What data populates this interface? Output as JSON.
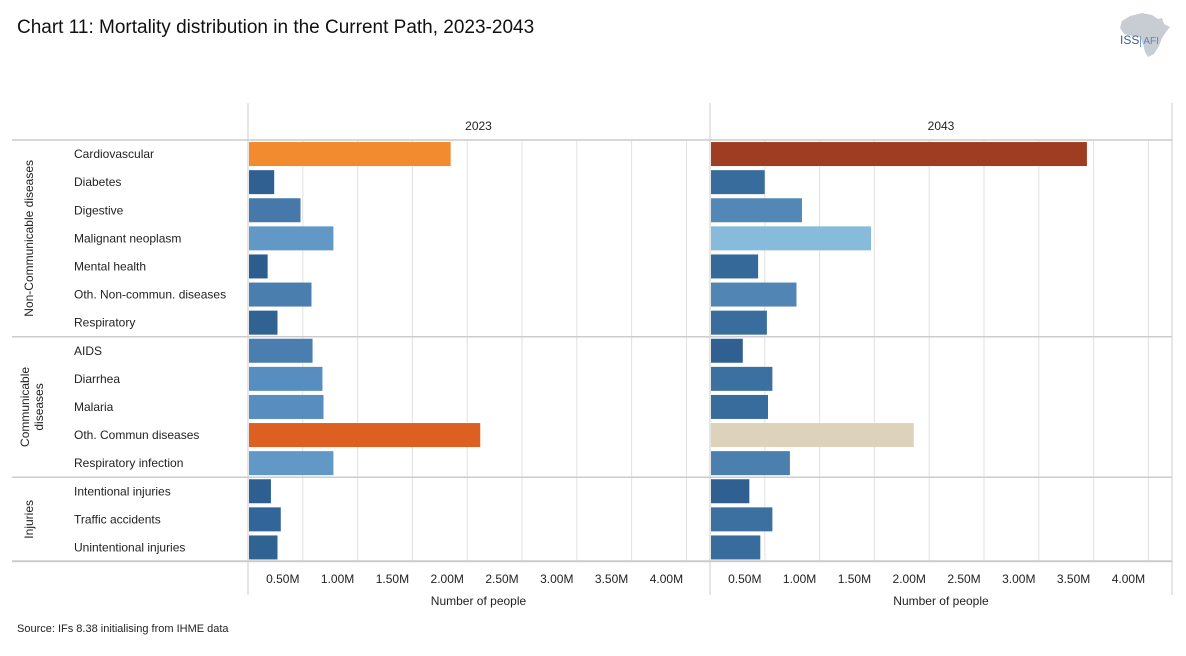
{
  "title": "Chart 11: Mortality distribution in the Current Path, 2023-2043",
  "logo": {
    "icon": "africa-map-icon",
    "text_main": "ISS",
    "text_sub": "AFI"
  },
  "source": "Source: IFs 8.38 initialising from IHME data",
  "colors": {
    "grid": "#e2e2e2",
    "border": "#cccccc",
    "text": "#222222"
  },
  "chart_data": {
    "type": "bar",
    "orientation": "horizontal",
    "title": "Chart 11: Mortality distribution in the Current Path, 2023-2043",
    "xlabel": "Number of people",
    "xlim": [
      0,
      4200000
    ],
    "x_ticks": [
      500000,
      1000000,
      1500000,
      2000000,
      2500000,
      3000000,
      3500000,
      4000000
    ],
    "x_tick_labels": [
      "0.50M",
      "1.00M",
      "1.50M",
      "2.00M",
      "2.50M",
      "3.00M",
      "3.50M",
      "4.00M"
    ],
    "grid": true,
    "groups": [
      {
        "name": "Non-Communicable diseases",
        "label_lines": [
          "Non-Communicable diseases"
        ],
        "categories": [
          "Cardiovascular",
          "Diabetes",
          "Digestive",
          "Malignant neoplasm",
          "Mental health",
          "Oth. Non-commun. diseases",
          "Respiratory"
        ]
      },
      {
        "name": "Communicable diseases",
        "label_lines": [
          "Communicable",
          "diseases"
        ],
        "categories": [
          "AIDS",
          "Diarrhea",
          "Malaria",
          "Oth. Commun diseases",
          "Respiratory infection"
        ]
      },
      {
        "name": "Injuries",
        "label_lines": [
          "Injuries"
        ],
        "categories": [
          "Intentional injuries",
          "Traffic accidents",
          "Unintentional injuries"
        ]
      }
    ],
    "categories": [
      "Cardiovascular",
      "Diabetes",
      "Digestive",
      "Malignant neoplasm",
      "Mental health",
      "Oth. Non-commun. diseases",
      "Respiratory",
      "AIDS",
      "Diarrhea",
      "Malaria",
      "Oth. Commun diseases",
      "Respiratory infection",
      "Intentional injuries",
      "Traffic accidents",
      "Unintentional injuries"
    ],
    "series": [
      {
        "name": "2023",
        "values": [
          1840000,
          230000,
          470000,
          770000,
          170000,
          570000,
          260000,
          580000,
          670000,
          680000,
          2110000,
          770000,
          200000,
          290000,
          260000
        ],
        "colors": [
          "#f28a30",
          "#2f6091",
          "#4679a9",
          "#6198c6",
          "#2d5d8e",
          "#4a7eaf",
          "#306292",
          "#4a7eaf",
          "#578dbf",
          "#578dbf",
          "#dd6022",
          "#6198c6",
          "#2e5f90",
          "#32659a",
          "#306292"
        ]
      },
      {
        "name": "2043",
        "values": [
          3430000,
          490000,
          830000,
          1460000,
          430000,
          780000,
          510000,
          290000,
          560000,
          520000,
          1850000,
          720000,
          350000,
          560000,
          450000
        ],
        "colors": [
          "#9e3d22",
          "#386c9c",
          "#5388b6",
          "#87bbdb",
          "#356999",
          "#5185b4",
          "#396d9e",
          "#2f6091",
          "#3c70a1",
          "#386c9d",
          "#ddd2bc",
          "#4b7fae",
          "#2f6091",
          "#3c70a1",
          "#386c9d"
        ]
      }
    ]
  }
}
